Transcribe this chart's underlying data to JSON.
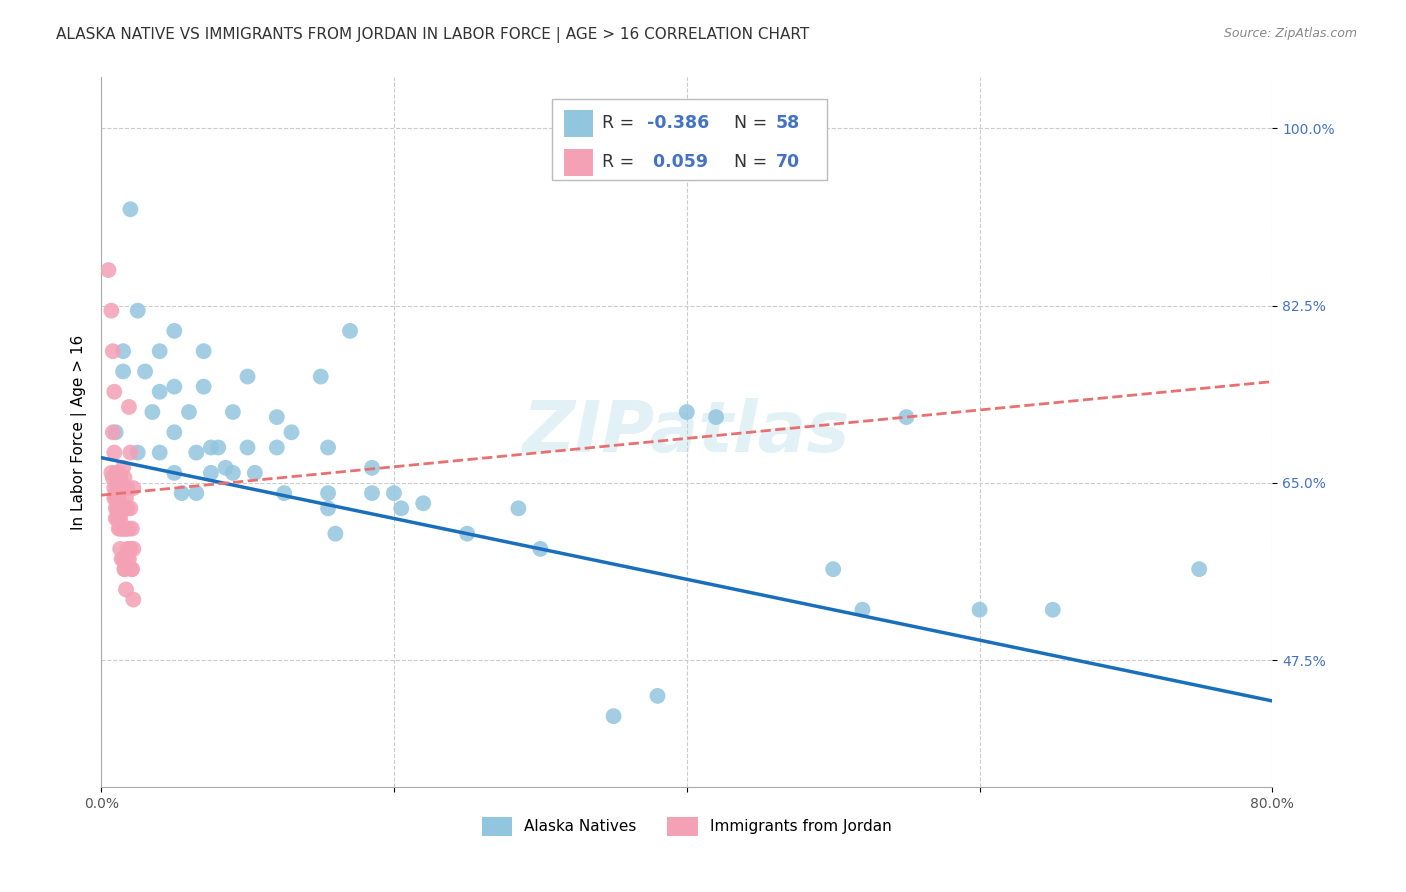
{
  "title": "ALASKA NATIVE VS IMMIGRANTS FROM JORDAN IN LABOR FORCE | AGE > 16 CORRELATION CHART",
  "source": "Source: ZipAtlas.com",
  "xlabel": "",
  "ylabel": "In Labor Force | Age > 16",
  "xlim": [
    0.0,
    0.8
  ],
  "ylim": [
    0.35,
    1.05
  ],
  "xticks": [
    0.0,
    0.2,
    0.4,
    0.6,
    0.8
  ],
  "xticklabels": [
    "0.0%",
    "",
    "",
    "",
    "80.0%"
  ],
  "yticks_right": [
    0.475,
    0.65,
    0.825,
    1.0
  ],
  "yticklabels_right": [
    "47.5%",
    "65.0%",
    "82.5%",
    "100.0%"
  ],
  "blue_R": -0.386,
  "blue_N": 58,
  "pink_R": 0.059,
  "pink_N": 70,
  "blue_color": "#92c5de",
  "pink_color": "#f4a0b5",
  "blue_line_color": "#1a6fbd",
  "pink_line_color": "#e87070",
  "blue_scatter": [
    [
      0.02,
      0.92
    ],
    [
      0.01,
      0.7
    ],
    [
      0.015,
      0.78
    ],
    [
      0.015,
      0.76
    ],
    [
      0.025,
      0.82
    ],
    [
      0.025,
      0.68
    ],
    [
      0.03,
      0.76
    ],
    [
      0.035,
      0.72
    ],
    [
      0.04,
      0.78
    ],
    [
      0.04,
      0.74
    ],
    [
      0.04,
      0.68
    ],
    [
      0.05,
      0.8
    ],
    [
      0.05,
      0.745
    ],
    [
      0.05,
      0.7
    ],
    [
      0.05,
      0.66
    ],
    [
      0.055,
      0.64
    ],
    [
      0.06,
      0.72
    ],
    [
      0.065,
      0.68
    ],
    [
      0.065,
      0.64
    ],
    [
      0.07,
      0.78
    ],
    [
      0.07,
      0.745
    ],
    [
      0.075,
      0.685
    ],
    [
      0.075,
      0.66
    ],
    [
      0.08,
      0.685
    ],
    [
      0.085,
      0.665
    ],
    [
      0.09,
      0.66
    ],
    [
      0.09,
      0.72
    ],
    [
      0.1,
      0.755
    ],
    [
      0.1,
      0.685
    ],
    [
      0.105,
      0.66
    ],
    [
      0.12,
      0.715
    ],
    [
      0.12,
      0.685
    ],
    [
      0.125,
      0.64
    ],
    [
      0.13,
      0.7
    ],
    [
      0.15,
      0.755
    ],
    [
      0.155,
      0.685
    ],
    [
      0.155,
      0.625
    ],
    [
      0.155,
      0.64
    ],
    [
      0.16,
      0.6
    ],
    [
      0.17,
      0.8
    ],
    [
      0.185,
      0.665
    ],
    [
      0.185,
      0.64
    ],
    [
      0.2,
      0.64
    ],
    [
      0.205,
      0.625
    ],
    [
      0.22,
      0.63
    ],
    [
      0.25,
      0.6
    ],
    [
      0.285,
      0.625
    ],
    [
      0.3,
      0.585
    ],
    [
      0.35,
      0.42
    ],
    [
      0.38,
      0.44
    ],
    [
      0.4,
      0.72
    ],
    [
      0.42,
      0.715
    ],
    [
      0.5,
      0.565
    ],
    [
      0.52,
      0.525
    ],
    [
      0.55,
      0.715
    ],
    [
      0.6,
      0.525
    ],
    [
      0.65,
      0.525
    ],
    [
      0.75,
      0.565
    ]
  ],
  "pink_scatter": [
    [
      0.005,
      0.86
    ],
    [
      0.007,
      0.82
    ],
    [
      0.008,
      0.78
    ],
    [
      0.009,
      0.74
    ],
    [
      0.008,
      0.7
    ],
    [
      0.009,
      0.68
    ],
    [
      0.007,
      0.66
    ],
    [
      0.008,
      0.655
    ],
    [
      0.009,
      0.645
    ],
    [
      0.01,
      0.64
    ],
    [
      0.009,
      0.635
    ],
    [
      0.01,
      0.625
    ],
    [
      0.01,
      0.615
    ],
    [
      0.01,
      0.66
    ],
    [
      0.011,
      0.655
    ],
    [
      0.011,
      0.645
    ],
    [
      0.01,
      0.635
    ],
    [
      0.011,
      0.625
    ],
    [
      0.011,
      0.615
    ],
    [
      0.012,
      0.605
    ],
    [
      0.011,
      0.65
    ],
    [
      0.012,
      0.645
    ],
    [
      0.011,
      0.635
    ],
    [
      0.012,
      0.625
    ],
    [
      0.012,
      0.615
    ],
    [
      0.012,
      0.66
    ],
    [
      0.013,
      0.655
    ],
    [
      0.012,
      0.635
    ],
    [
      0.013,
      0.625
    ],
    [
      0.012,
      0.615
    ],
    [
      0.013,
      0.605
    ],
    [
      0.013,
      0.655
    ],
    [
      0.013,
      0.645
    ],
    [
      0.014,
      0.625
    ],
    [
      0.013,
      0.615
    ],
    [
      0.014,
      0.605
    ],
    [
      0.013,
      0.585
    ],
    [
      0.014,
      0.645
    ],
    [
      0.014,
      0.625
    ],
    [
      0.015,
      0.605
    ],
    [
      0.014,
      0.575
    ],
    [
      0.015,
      0.665
    ],
    [
      0.015,
      0.645
    ],
    [
      0.015,
      0.625
    ],
    [
      0.016,
      0.605
    ],
    [
      0.015,
      0.575
    ],
    [
      0.016,
      0.565
    ],
    [
      0.016,
      0.655
    ],
    [
      0.016,
      0.625
    ],
    [
      0.017,
      0.605
    ],
    [
      0.016,
      0.565
    ],
    [
      0.017,
      0.635
    ],
    [
      0.017,
      0.605
    ],
    [
      0.018,
      0.575
    ],
    [
      0.017,
      0.545
    ],
    [
      0.018,
      0.645
    ],
    [
      0.018,
      0.625
    ],
    [
      0.018,
      0.585
    ],
    [
      0.019,
      0.725
    ],
    [
      0.019,
      0.605
    ],
    [
      0.019,
      0.575
    ],
    [
      0.02,
      0.625
    ],
    [
      0.02,
      0.585
    ],
    [
      0.021,
      0.565
    ],
    [
      0.02,
      0.68
    ],
    [
      0.021,
      0.605
    ],
    [
      0.021,
      0.565
    ],
    [
      0.022,
      0.645
    ],
    [
      0.022,
      0.585
    ],
    [
      0.022,
      0.535
    ]
  ],
  "blue_line_x": [
    0.0,
    0.8
  ],
  "blue_line_y": [
    0.675,
    0.435
  ],
  "pink_line_x": [
    0.0,
    0.8
  ],
  "pink_line_y": [
    0.638,
    0.75
  ],
  "background_color": "#ffffff",
  "grid_color": "#cccccc",
  "title_fontsize": 11,
  "bottom_legend_blue": "Alaska Natives",
  "bottom_legend_pink": "Immigrants from Jordan"
}
